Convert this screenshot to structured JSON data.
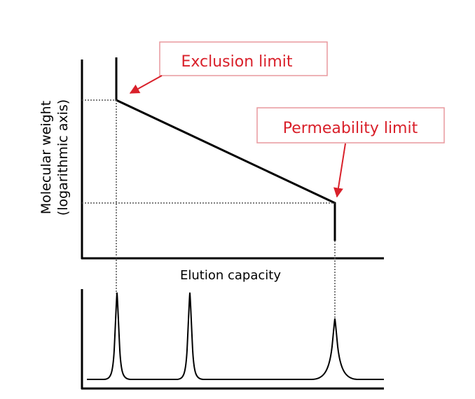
{
  "diagram": {
    "y_axis_label_line1": "Molecular weight",
    "y_axis_label_line2": "(logarithmic axis)",
    "x_axis_label": "Elution capacity",
    "callouts": {
      "exclusion": "Exclusion limit",
      "permeability": "Permeability limit"
    },
    "colors": {
      "callout": "#d9202a",
      "line": "#000000",
      "guide": "#666666"
    }
  }
}
